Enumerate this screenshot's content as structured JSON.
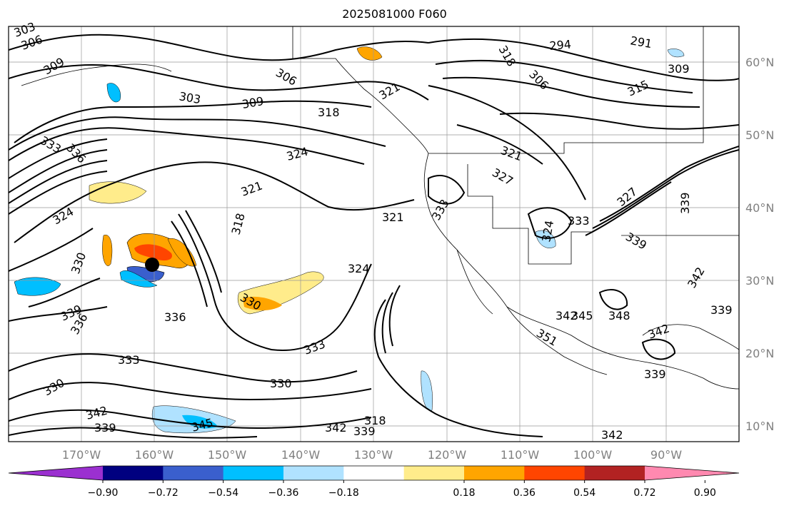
{
  "title": "2025081000 F060",
  "lon_labels": [
    "170°W",
    "160°W",
    "150°W",
    "140°W",
    "130°W",
    "120°W",
    "110°W",
    "100°W",
    "90°W"
  ],
  "lat_labels": [
    "60°N",
    "50°N",
    "40°N",
    "30°N",
    "20°N",
    "10°N"
  ],
  "contour_labels": [
    "303",
    "306",
    "309",
    "306",
    "303",
    "309",
    "318",
    "321",
    "324",
    "321",
    "318",
    "321",
    "324",
    "330",
    "333",
    "336",
    "330",
    "336",
    "339",
    "336",
    "333",
    "330",
    "342",
    "339",
    "345",
    "330",
    "333",
    "324",
    "318",
    "342",
    "339",
    "333",
    "321",
    "327",
    "333",
    "339",
    "342",
    "345",
    "348",
    "342",
    "342",
    "339",
    "339",
    "294",
    "291",
    "309",
    "315",
    "327",
    "339",
    "342",
    "351",
    "306",
    "318",
    "324"
  ],
  "colorbar": {
    "ticks": [
      "−0.90",
      "−0.72",
      "−0.54",
      "−0.36",
      "−0.18",
      "0.18",
      "0.36",
      "0.54",
      "0.72",
      "0.90"
    ],
    "colors": [
      "#9b30d0",
      "#000080",
      "#3a5fcd",
      "#00bfff",
      "#b0e2ff",
      "#ffffff",
      "#ffec8b",
      "#ffa500",
      "#ff4500",
      "#b22222",
      "#ff89b0"
    ]
  },
  "marker": "center-dot"
}
